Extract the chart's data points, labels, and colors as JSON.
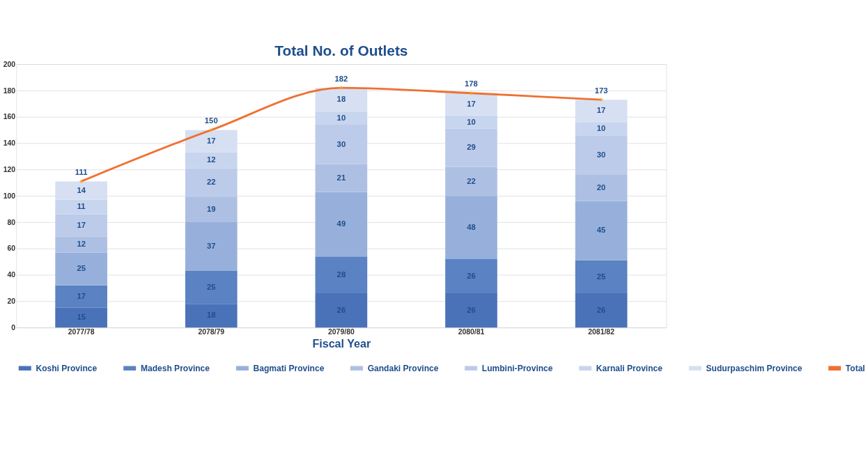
{
  "chart_data": {
    "type": "bar",
    "title": "Total No. of Outlets",
    "xlabel": "Fiscal Year",
    "categories": [
      "2077/78",
      "2078/79",
      "2079/80",
      "2080/81",
      "2081/82"
    ],
    "stacked": true,
    "data_labels": true,
    "grid": "y",
    "legend": "bottom",
    "ylim": [
      0,
      200
    ],
    "yticks": [
      0,
      20,
      40,
      60,
      80,
      100,
      120,
      140,
      160,
      180,
      200
    ],
    "series": [
      {
        "name": "Koshi Province",
        "color": "#4a72b8",
        "values": [
          15,
          18,
          26,
          26,
          26
        ]
      },
      {
        "name": "Madesh Province",
        "color": "#5b82c2",
        "values": [
          17,
          25,
          28,
          26,
          25
        ]
      },
      {
        "name": "Bagmati Province",
        "color": "#97b0db",
        "values": [
          25,
          37,
          49,
          48,
          45
        ]
      },
      {
        "name": "Gandaki Province",
        "color": "#adc0e3",
        "values": [
          12,
          19,
          21,
          22,
          20
        ]
      },
      {
        "name": "Lumbini-Province",
        "color": "#bccbe9",
        "values": [
          17,
          22,
          30,
          29,
          30
        ]
      },
      {
        "name": "Karnali Province",
        "color": "#c8d5ee",
        "values": [
          11,
          12,
          10,
          10,
          10
        ]
      },
      {
        "name": "Sudurpaschim Province",
        "color": "#d6e0f2",
        "values": [
          14,
          17,
          18,
          17,
          17
        ]
      },
      {
        "name": "Total",
        "type": "line",
        "color": "#f07030",
        "marker": "diamond",
        "values": [
          111,
          150,
          182,
          178,
          173
        ]
      }
    ]
  }
}
